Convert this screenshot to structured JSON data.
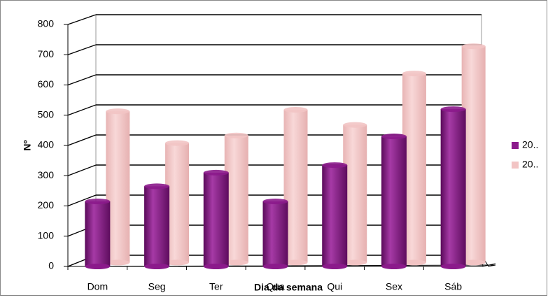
{
  "chart_data": {
    "type": "bar3d",
    "x_label": "Dia da semana",
    "y_label": "Nº",
    "categories": [
      "Dom",
      "Seg",
      "Ter",
      "Qua",
      "Qui",
      "Sex",
      "Sáb"
    ],
    "series": [
      {
        "name": "20..",
        "color": "#8b1a8b",
        "values": [
          215,
          265,
          310,
          215,
          335,
          430,
          520
        ]
      },
      {
        "name": "20..",
        "color": "#f2c4c4",
        "values": [
          500,
          395,
          420,
          505,
          455,
          625,
          715
        ]
      }
    ],
    "ylim": [
      0,
      800
    ],
    "yticks": [
      0,
      100,
      200,
      300,
      400,
      500,
      600,
      700,
      800
    ],
    "grid": true,
    "legend": "right"
  }
}
